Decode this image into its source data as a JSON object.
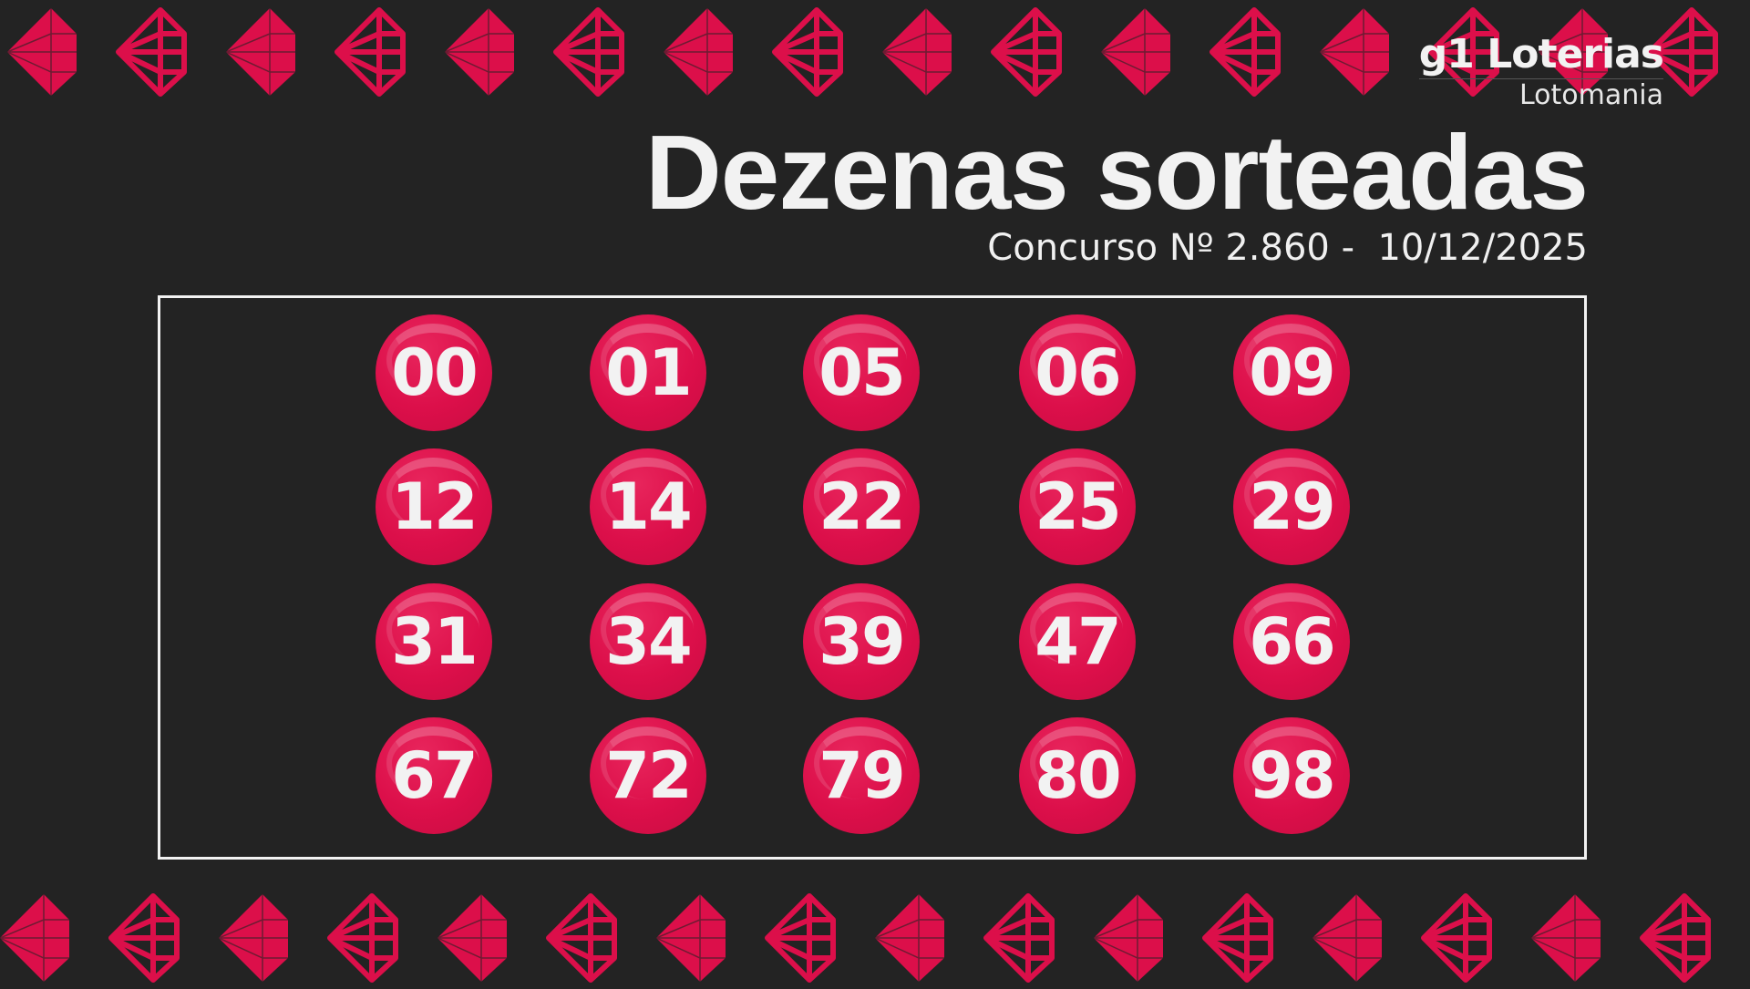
{
  "logo": {
    "brand": "g1 Loterias",
    "product": "Lotomania"
  },
  "title": "Dezenas sorteadas",
  "subtitle": "Concurso Nº 2.860 -  10/12/2025",
  "numbers": [
    "00",
    "01",
    "05",
    "06",
    "09",
    "12",
    "14",
    "22",
    "25",
    "29",
    "31",
    "34",
    "39",
    "47",
    "66",
    "67",
    "72",
    "79",
    "80",
    "98"
  ],
  "colors": {
    "background": "#232323",
    "accent": "#dc0f4a",
    "text": "#f2f2f2"
  },
  "decoration": {
    "icon": "gem-icon",
    "variants": [
      "filled",
      "outline"
    ]
  }
}
